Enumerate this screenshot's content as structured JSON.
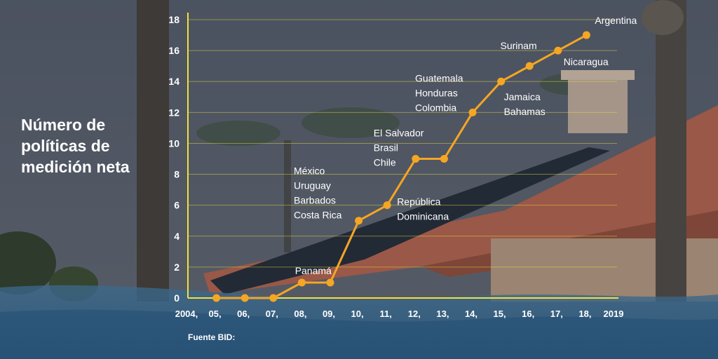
{
  "chart_data": {
    "type": "line",
    "title": "Número de\npolíticas de\nmedición neta",
    "source": "Fuente BID:",
    "x": [
      2005,
      2006,
      2007,
      2008,
      2009,
      2010,
      2011,
      2012,
      2013,
      2014,
      2015,
      2016,
      2017,
      2018
    ],
    "values": [
      0,
      0,
      0,
      1,
      1,
      5,
      6,
      9,
      9,
      12,
      14,
      15,
      16,
      17
    ],
    "x_tick_labels": [
      "2004,",
      "05,",
      "06,",
      "07,",
      "08,",
      "09,",
      "10,",
      "11,",
      "12,",
      "13,",
      "14,",
      "15,",
      "16,",
      "17,",
      "18,",
      "2019"
    ],
    "y_tick_labels": [
      "0",
      "2",
      "4",
      "6",
      "8",
      "10",
      "12",
      "14",
      "16",
      "18"
    ],
    "ylim": [
      0,
      18
    ],
    "grid": true,
    "line_color": "#f5a623",
    "axis_color": "#f2e13a",
    "annotations": [
      "Panamá",
      "México\nUruguay\nBarbados\nCosta Rica",
      "República\nDominicana",
      "El Salvador\nBrasil\nChile",
      "Guatemala\nHonduras\nColombia",
      "Jamaica\nBahamas",
      "Surinam",
      "Nicaragua",
      "Argentina"
    ]
  }
}
